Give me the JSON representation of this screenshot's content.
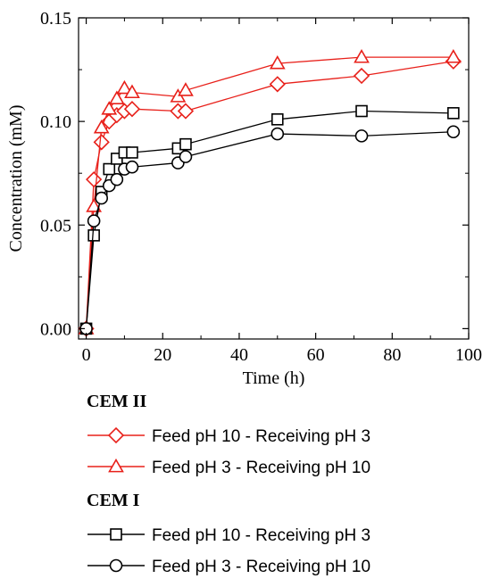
{
  "chart_data": {
    "type": "line",
    "title": "",
    "xlabel": "Time (h)",
    "ylabel": "Concentration (mM)",
    "xlim": [
      -2,
      100
    ],
    "ylim": [
      -0.005,
      0.15
    ],
    "x_ticks": [
      0,
      20,
      40,
      60,
      80,
      100
    ],
    "y_ticks": [
      0.0,
      0.05,
      0.1,
      0.15
    ],
    "x_tick_labels": [
      "0",
      "20",
      "40",
      "60",
      "80",
      "100"
    ],
    "y_tick_labels": [
      "0.00",
      "0.05",
      "0.10",
      "0.15"
    ],
    "grid": false,
    "legend_position": "below",
    "legend_groups": [
      {
        "title": "CEM II",
        "series_indices": [
          0,
          1
        ]
      },
      {
        "title": "CEM I",
        "series_indices": [
          2,
          3
        ]
      }
    ],
    "series": [
      {
        "name": "Feed pH 10 - Receiving pH 3",
        "group": "CEM II",
        "marker": "diamond",
        "color": "#e8201a",
        "x": [
          0,
          2,
          4,
          6,
          8,
          10,
          12,
          24,
          26,
          50,
          72,
          96
        ],
        "y": [
          0.0,
          0.072,
          0.09,
          0.1,
          0.103,
          0.105,
          0.106,
          0.105,
          0.105,
          0.118,
          0.122,
          0.129
        ]
      },
      {
        "name": "Feed pH 3 - Receiving pH 10",
        "group": "CEM II",
        "marker": "triangle",
        "color": "#e8201a",
        "x": [
          0,
          2,
          4,
          6,
          8,
          10,
          12,
          24,
          26,
          50,
          72,
          96
        ],
        "y": [
          0.0,
          0.059,
          0.097,
          0.106,
          0.111,
          0.116,
          0.114,
          0.112,
          0.115,
          0.128,
          0.131,
          0.131
        ]
      },
      {
        "name": "Feed pH 10 - Receiving pH 3",
        "group": "CEM I",
        "marker": "square",
        "color": "#000000",
        "x": [
          0,
          2,
          4,
          6,
          8,
          10,
          12,
          24,
          26,
          50,
          72,
          96
        ],
        "y": [
          0.0,
          0.045,
          0.066,
          0.077,
          0.082,
          0.085,
          0.085,
          0.087,
          0.089,
          0.101,
          0.105,
          0.104
        ]
      },
      {
        "name": "Feed pH 3 - Receiving pH 10",
        "group": "CEM I",
        "marker": "circle",
        "color": "#000000",
        "x": [
          0,
          2,
          4,
          6,
          8,
          10,
          12,
          24,
          26,
          50,
          72,
          96
        ],
        "y": [
          0.0,
          0.052,
          0.063,
          0.069,
          0.072,
          0.077,
          0.078,
          0.08,
          0.083,
          0.094,
          0.093,
          0.095
        ]
      }
    ]
  }
}
